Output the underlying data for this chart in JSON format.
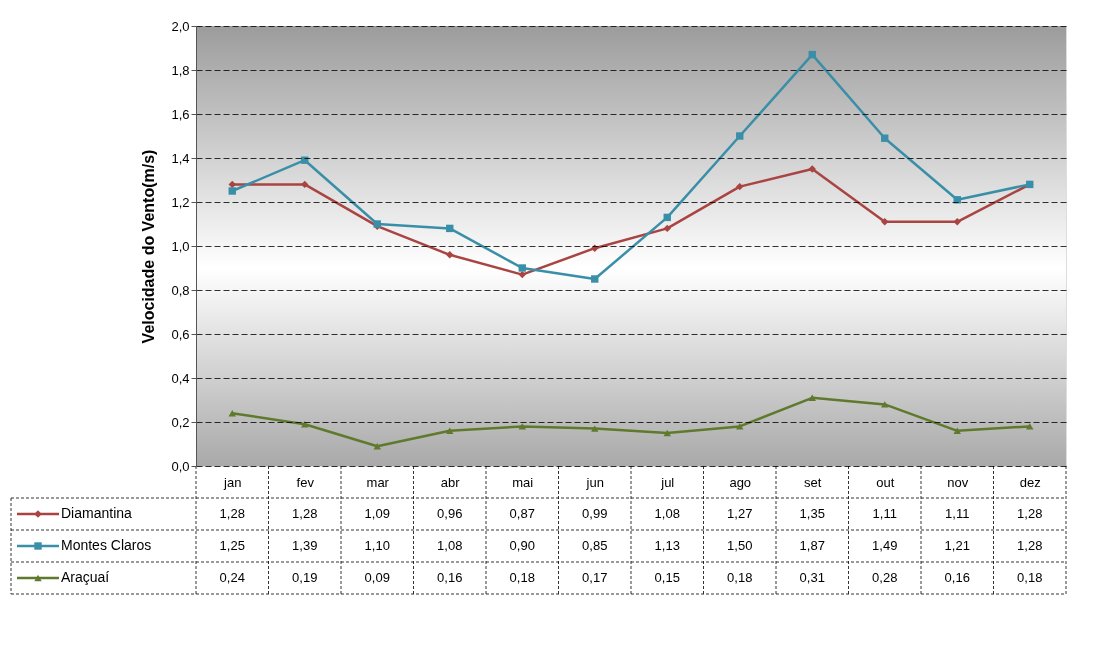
{
  "chart_data": {
    "type": "line",
    "ylabel": "Velocidade do Vento(m/s)",
    "categories": [
      "jan",
      "fev",
      "mar",
      "abr",
      "mai",
      "jun",
      "jul",
      "ago",
      "set",
      "out",
      "nov",
      "dez"
    ],
    "series": [
      {
        "name": "Diamantina",
        "color": "#a94442",
        "marker": "diamond",
        "values": [
          1.28,
          1.28,
          1.09,
          0.96,
          0.87,
          0.99,
          1.08,
          1.27,
          1.35,
          1.11,
          1.11,
          1.28
        ],
        "value_labels": [
          "1,28",
          "1,28",
          "1,09",
          "0,96",
          "0,87",
          "0,99",
          "1,08",
          "1,27",
          "1,35",
          "1,11",
          "1,11",
          "1,28"
        ]
      },
      {
        "name": "Montes Claros",
        "color": "#3a8fa8",
        "marker": "square",
        "values": [
          1.25,
          1.39,
          1.1,
          1.08,
          0.9,
          0.85,
          1.13,
          1.5,
          1.87,
          1.49,
          1.21,
          1.28
        ],
        "value_labels": [
          "1,25",
          "1,39",
          "1,10",
          "1,08",
          "0,90",
          "0,85",
          "1,13",
          "1,50",
          "1,87",
          "1,49",
          "1,21",
          "1,28"
        ]
      },
      {
        "name": "Araçuaí",
        "color": "#5f7a2c",
        "marker": "triangle",
        "values": [
          0.24,
          0.19,
          0.09,
          0.16,
          0.18,
          0.17,
          0.15,
          0.18,
          0.31,
          0.28,
          0.16,
          0.18
        ],
        "value_labels": [
          "0,24",
          "0,19",
          "0,09",
          "0,16",
          "0,18",
          "0,17",
          "0,15",
          "0,18",
          "0,31",
          "0,28",
          "0,16",
          "0,18"
        ]
      }
    ],
    "ylim": [
      0,
      2
    ],
    "yticks": [
      {
        "value": 0,
        "label": "0,0"
      },
      {
        "value": 0.2,
        "label": "0,2"
      },
      {
        "value": 0.4,
        "label": "0,4"
      },
      {
        "value": 0.6,
        "label": "0,6"
      },
      {
        "value": 0.8,
        "label": "0,8"
      },
      {
        "value": 1.0,
        "label": "1,0"
      },
      {
        "value": 1.2,
        "label": "1,2"
      },
      {
        "value": 1.4,
        "label": "1,4"
      },
      {
        "value": 1.6,
        "label": "1,6"
      },
      {
        "value": 1.8,
        "label": "1,8"
      },
      {
        "value": 2.0,
        "label": "2,0"
      }
    ],
    "grid": "y",
    "legend": "bottom left",
    "line_style": "solid"
  }
}
